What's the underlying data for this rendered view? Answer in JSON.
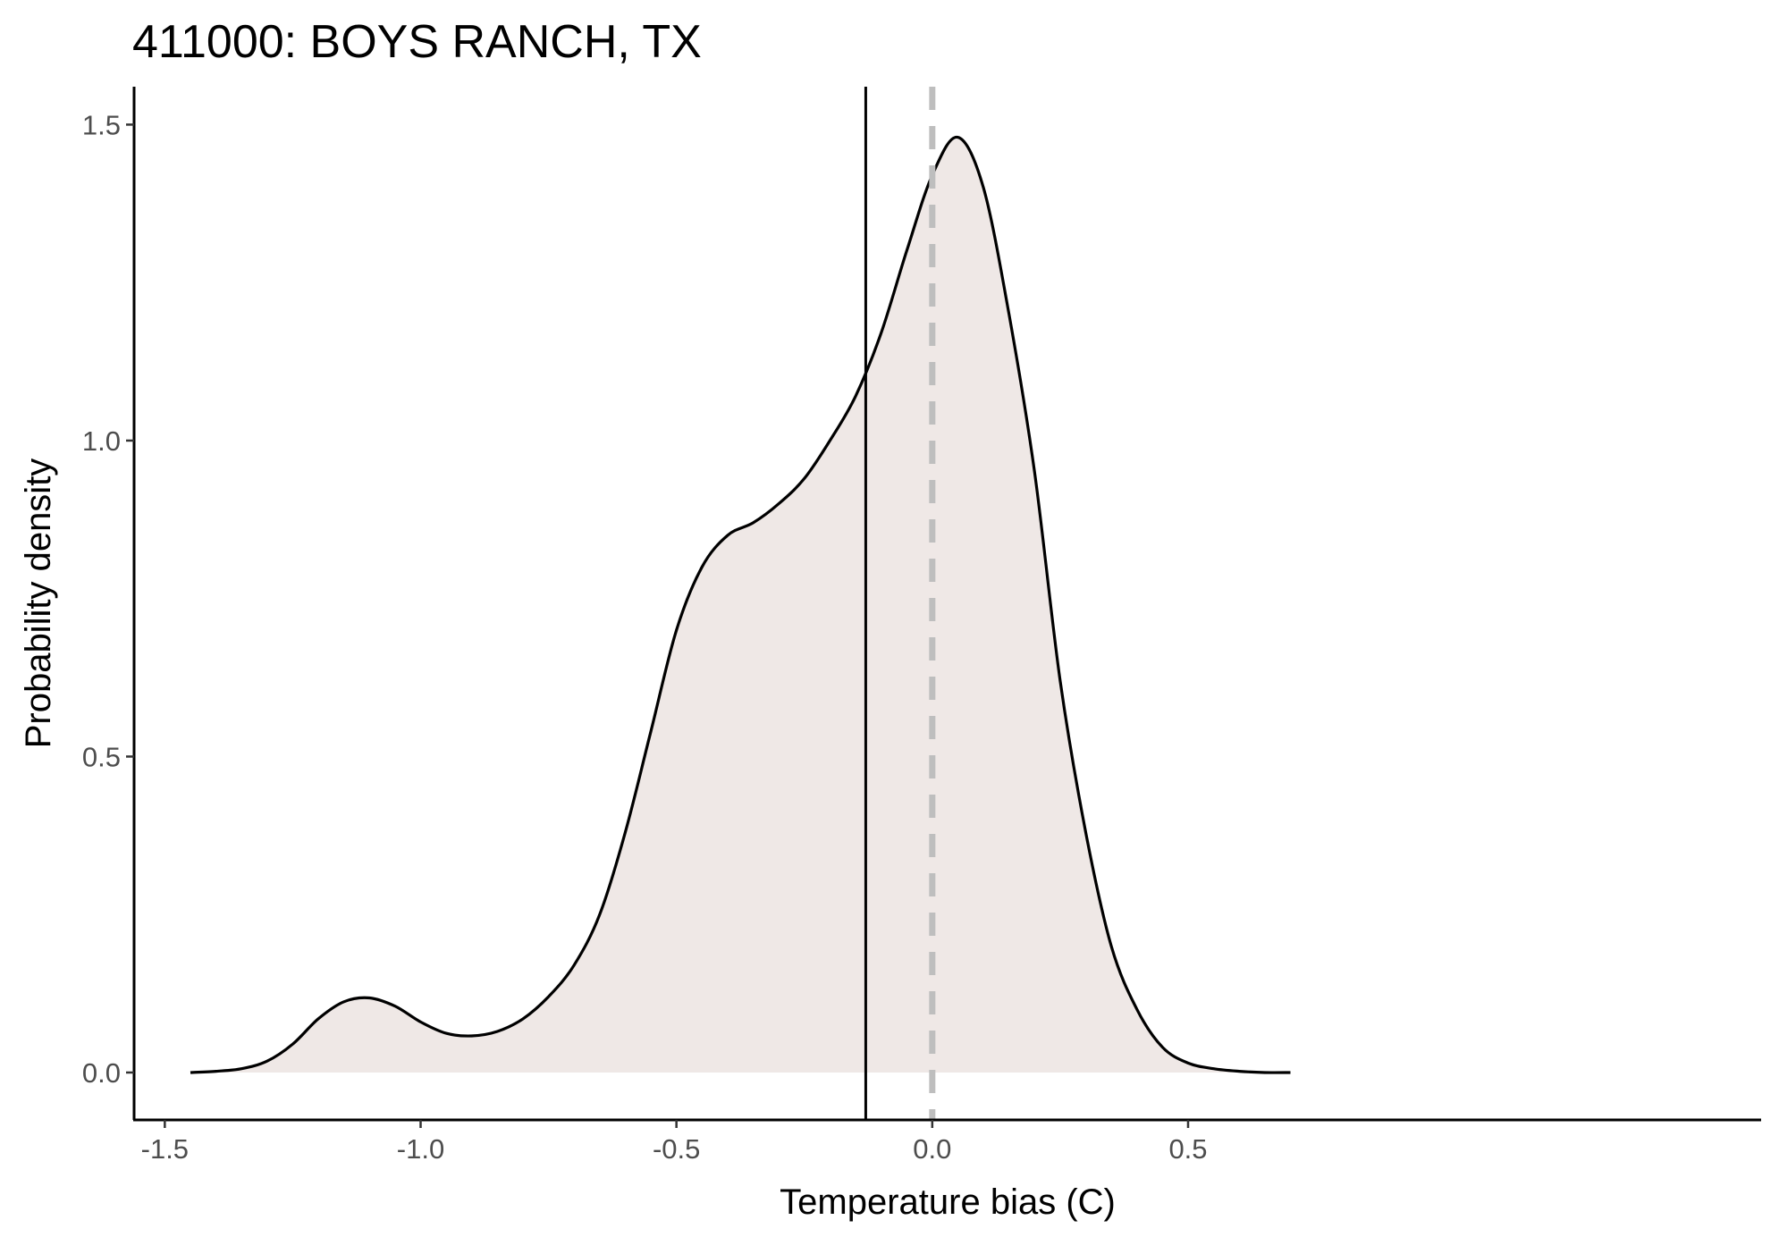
{
  "chart_data": {
    "type": "area",
    "title": "411000: BOYS RANCH, TX",
    "xlabel": "Temperature bias (C)",
    "ylabel": "Probability density",
    "xlim": [
      -1.56,
      1.62
    ],
    "ylim": [
      -0.075,
      1.56
    ],
    "x_ticks": [
      -1.5,
      -1.0,
      -0.5,
      0.0,
      0.5
    ],
    "x_tick_labels": [
      "-1.5",
      "-1.0",
      "-0.5",
      "0.0",
      "0.5"
    ],
    "y_ticks": [
      0.0,
      0.5,
      1.0,
      1.5
    ],
    "y_tick_labels": [
      "0.0",
      "0.5",
      "1.0",
      "1.5"
    ],
    "grid": false,
    "fill_color": "#efe8e6",
    "line_color": "#000000",
    "reference_lines": [
      {
        "x": -0.13,
        "style": "solid",
        "color": "#000000"
      },
      {
        "x": 0.0,
        "style": "dashed",
        "color": "#bebebe"
      }
    ],
    "series": [
      {
        "x": [
          -1.45,
          -1.4,
          -1.35,
          -1.3,
          -1.25,
          -1.2,
          -1.15,
          -1.1,
          -1.05,
          -1.0,
          -0.95,
          -0.9,
          -0.85,
          -0.8,
          -0.75,
          -0.7,
          -0.65,
          -0.6,
          -0.55,
          -0.5,
          -0.45,
          -0.4,
          -0.35,
          -0.3,
          -0.25,
          -0.2,
          -0.15,
          -0.1,
          -0.05,
          0.0,
          0.05,
          0.1,
          0.15,
          0.2,
          0.25,
          0.3,
          0.35,
          0.4,
          0.45,
          0.5,
          0.55,
          0.6,
          0.65,
          0.7
        ],
        "y": [
          0.0,
          0.002,
          0.006,
          0.018,
          0.045,
          0.085,
          0.112,
          0.118,
          0.105,
          0.08,
          0.062,
          0.058,
          0.065,
          0.085,
          0.12,
          0.17,
          0.25,
          0.38,
          0.54,
          0.7,
          0.8,
          0.85,
          0.87,
          0.9,
          0.94,
          1.0,
          1.07,
          1.17,
          1.3,
          1.42,
          1.48,
          1.4,
          1.2,
          0.95,
          0.62,
          0.38,
          0.2,
          0.1,
          0.04,
          0.015,
          0.006,
          0.002,
          0.0,
          0.0
        ]
      }
    ]
  }
}
